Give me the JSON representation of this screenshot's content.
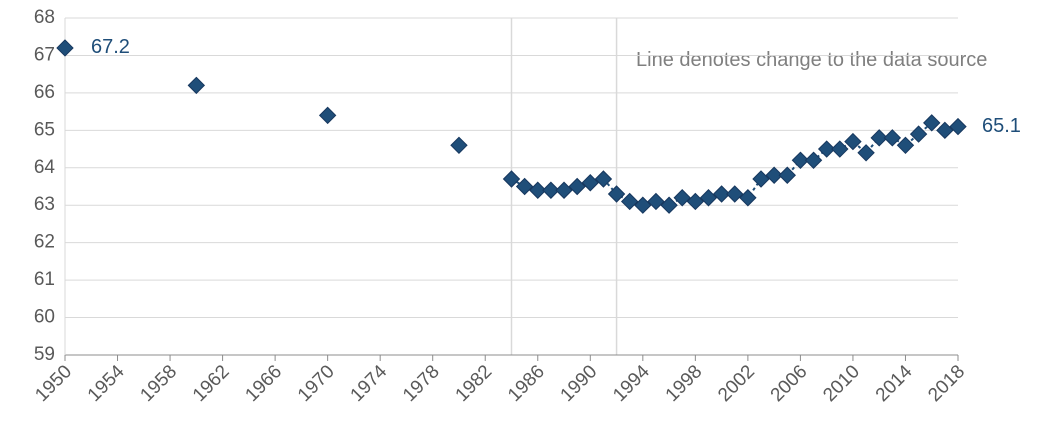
{
  "chart_data": {
    "type": "scatter",
    "annotation": "Line denotes change to the data source",
    "xlim": [
      1950,
      2018
    ],
    "xticks": [
      1950,
      1954,
      1958,
      1962,
      1966,
      1970,
      1974,
      1978,
      1982,
      1986,
      1990,
      1994,
      1998,
      2002,
      2006,
      2010,
      2014,
      2018
    ],
    "ylim": [
      59,
      68
    ],
    "yticks": [
      59,
      60,
      61,
      62,
      63,
      64,
      65,
      66,
      67,
      68
    ],
    "grid": true,
    "vlines": [
      1984,
      1992
    ],
    "series": [
      {
        "color": "#1f4e79",
        "line": false,
        "x": [
          1950,
          1960,
          1970,
          1980
        ],
        "values": [
          67.2,
          66.2,
          65.4,
          64.6
        ]
      },
      {
        "color": "#1f4e79",
        "line": true,
        "x": [
          1984,
          1985,
          1986,
          1987,
          1988,
          1989,
          1990,
          1991,
          1992,
          1993,
          1994,
          1995,
          1996,
          1997,
          1998,
          1999,
          2000,
          2001,
          2002,
          2003,
          2004,
          2005,
          2006,
          2007,
          2008,
          2009,
          2010,
          2011,
          2012,
          2013,
          2014,
          2015,
          2016,
          2017,
          2018
        ],
        "values": [
          63.7,
          63.5,
          63.4,
          63.4,
          63.4,
          63.5,
          63.6,
          63.7,
          63.3,
          63.1,
          63.0,
          63.1,
          63.0,
          63.2,
          63.1,
          63.2,
          63.3,
          63.3,
          63.2,
          63.7,
          63.8,
          63.8,
          64.2,
          64.2,
          64.5,
          64.5,
          64.7,
          64.4,
          64.8,
          64.8,
          64.6,
          64.9,
          65.2,
          65.0,
          65.1
        ]
      }
    ]
  }
}
